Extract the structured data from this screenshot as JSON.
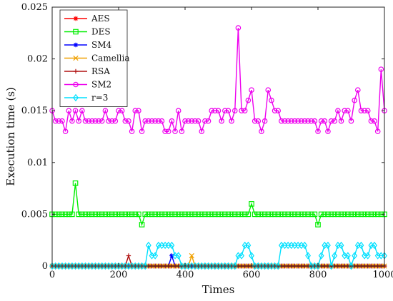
{
  "chart_data": {
    "type": "line",
    "xlabel": "Times",
    "ylabel": "Execution time (s)",
    "xlim": [
      0,
      1000
    ],
    "ylim": [
      0,
      0.025
    ],
    "xticks": [
      0,
      200,
      400,
      600,
      800,
      1000
    ],
    "yticks": [
      0,
      0.005,
      0.01,
      0.015,
      0.02,
      0.025
    ],
    "ytick_labels": [
      "0",
      "0.005",
      "0.01",
      "0.015",
      "0.02",
      "0.025"
    ],
    "grid": false,
    "legend_position": "top-left",
    "x": [
      0,
      10,
      20,
      30,
      40,
      50,
      60,
      70,
      80,
      90,
      100,
      110,
      120,
      130,
      140,
      150,
      160,
      170,
      180,
      190,
      200,
      210,
      220,
      230,
      240,
      250,
      260,
      270,
      280,
      290,
      300,
      310,
      320,
      330,
      340,
      350,
      360,
      370,
      380,
      390,
      400,
      410,
      420,
      430,
      440,
      450,
      460,
      470,
      480,
      490,
      500,
      510,
      520,
      530,
      540,
      550,
      560,
      570,
      580,
      590,
      600,
      610,
      620,
      630,
      640,
      650,
      660,
      670,
      680,
      690,
      700,
      710,
      720,
      730,
      740,
      750,
      760,
      770,
      780,
      790,
      800,
      810,
      820,
      830,
      840,
      850,
      860,
      870,
      880,
      890,
      900,
      910,
      920,
      930,
      940,
      950,
      960,
      970,
      980,
      990,
      1000
    ],
    "series": [
      {
        "name": "AES",
        "color": "#ff0000",
        "marker": "star",
        "values": [
          0,
          0,
          0,
          0,
          0,
          0,
          0,
          0,
          0,
          0,
          0,
          0,
          0,
          0,
          0,
          0,
          0,
          0,
          0,
          0,
          0,
          0,
          0,
          0,
          0,
          0,
          0,
          0,
          0,
          0,
          0,
          0,
          0,
          0,
          0,
          0,
          0,
          0,
          0,
          0,
          0,
          0,
          0,
          0,
          0,
          0,
          0,
          0,
          0,
          0,
          0,
          0,
          0,
          0,
          0,
          0,
          0,
          0,
          0,
          0,
          0,
          0,
          0,
          0,
          0,
          0,
          0,
          0,
          0,
          0,
          0,
          0,
          0,
          0,
          0,
          0,
          0,
          0,
          0,
          0,
          0,
          0,
          0,
          0,
          0,
          0,
          0,
          0,
          0,
          0,
          0,
          0,
          0,
          0,
          0,
          0,
          0,
          0,
          0,
          0,
          0
        ]
      },
      {
        "name": "DES",
        "color": "#00ee00",
        "marker": "square",
        "values": [
          0.005,
          0.005,
          0.005,
          0.005,
          0.005,
          0.005,
          0.005,
          0.008,
          0.005,
          0.005,
          0.005,
          0.005,
          0.005,
          0.005,
          0.005,
          0.005,
          0.005,
          0.005,
          0.005,
          0.005,
          0.005,
          0.005,
          0.005,
          0.005,
          0.005,
          0.005,
          0.005,
          0.004,
          0.005,
          0.005,
          0.005,
          0.005,
          0.005,
          0.005,
          0.005,
          0.005,
          0.005,
          0.005,
          0.005,
          0.005,
          0.005,
          0.005,
          0.005,
          0.005,
          0.005,
          0.005,
          0.005,
          0.005,
          0.005,
          0.005,
          0.005,
          0.005,
          0.005,
          0.005,
          0.005,
          0.005,
          0.005,
          0.005,
          0.005,
          0.005,
          0.006,
          0.005,
          0.005,
          0.005,
          0.005,
          0.005,
          0.005,
          0.005,
          0.005,
          0.005,
          0.005,
          0.005,
          0.005,
          0.005,
          0.005,
          0.005,
          0.005,
          0.005,
          0.005,
          0.005,
          0.004,
          0.005,
          0.005,
          0.005,
          0.005,
          0.005,
          0.005,
          0.005,
          0.005,
          0.005,
          0.005,
          0.005,
          0.005,
          0.005,
          0.005,
          0.005,
          0.005,
          0.005,
          0.005,
          0.005,
          0.005
        ]
      },
      {
        "name": "SM4",
        "color": "#0000ff",
        "marker": "asterisk",
        "values": [
          0,
          0,
          0,
          0,
          0,
          0,
          0,
          0,
          0,
          0,
          0,
          0,
          0,
          0,
          0,
          0,
          0,
          0,
          0,
          0,
          0,
          0,
          0,
          0,
          0,
          0,
          0,
          0,
          0,
          0,
          0,
          0,
          0,
          0,
          0,
          0,
          0.001,
          0,
          0,
          0,
          0,
          0,
          0,
          0,
          0,
          0,
          0,
          0,
          0,
          0,
          0,
          0,
          0,
          0,
          0,
          0,
          0,
          0,
          0,
          0,
          0,
          0,
          0,
          0,
          0,
          0,
          0,
          0,
          0,
          0,
          0,
          0,
          0,
          0,
          0,
          0,
          0,
          0,
          0,
          0,
          0,
          0,
          0,
          0,
          0,
          0,
          0,
          0,
          0,
          0,
          0,
          0,
          0,
          0,
          0,
          0,
          0,
          0,
          0,
          0,
          0
        ]
      },
      {
        "name": "Camellia",
        "color": "#f0a000",
        "marker": "x",
        "values": [
          0,
          0,
          0,
          0,
          0,
          0,
          0,
          0,
          0,
          0,
          0,
          0,
          0,
          0,
          0,
          0,
          0,
          0,
          0,
          0,
          0,
          0,
          0,
          0,
          0,
          0,
          0,
          0,
          0,
          0,
          0,
          0,
          0,
          0,
          0,
          0,
          0,
          0,
          0,
          0,
          0,
          0,
          0.001,
          0,
          0,
          0,
          0,
          0,
          0,
          0,
          0,
          0,
          0,
          0,
          0,
          0,
          0,
          0,
          0,
          0,
          0,
          0,
          0,
          0,
          0,
          0,
          0,
          0,
          0,
          0,
          0,
          0,
          0,
          0,
          0,
          0,
          0,
          0,
          0,
          0,
          0,
          0,
          0,
          0,
          0,
          0,
          0,
          0,
          0,
          0,
          0,
          0,
          0,
          0,
          0,
          0,
          0,
          0,
          0,
          0,
          0
        ]
      },
      {
        "name": "RSA",
        "color": "#b01010",
        "marker": "plus",
        "values": [
          0,
          0,
          0,
          0,
          0,
          0,
          0,
          0,
          0,
          0,
          0,
          0,
          0,
          0,
          0,
          0,
          0,
          0,
          0,
          0,
          0,
          0,
          0,
          0.001,
          0,
          0,
          0,
          0,
          0,
          0,
          0,
          0,
          0,
          0,
          0,
          0,
          0,
          0,
          0,
          0,
          0,
          0,
          0,
          0,
          0,
          0,
          0,
          0,
          0,
          0,
          0,
          0,
          0,
          0,
          0,
          0,
          0,
          0,
          0,
          0,
          0,
          0,
          0,
          0,
          0,
          0,
          0,
          0,
          0,
          0,
          0,
          0,
          0,
          0,
          0,
          0,
          0,
          0,
          0,
          0,
          0,
          0,
          0,
          0,
          0,
          0,
          0,
          0,
          0,
          0,
          0,
          0,
          0,
          0,
          0,
          0,
          0,
          0,
          0,
          0,
          0
        ]
      },
      {
        "name": "SM2",
        "color": "#ee00ee",
        "marker": "circle",
        "values": [
          0.015,
          0.014,
          0.014,
          0.014,
          0.013,
          0.015,
          0.014,
          0.015,
          0.014,
          0.015,
          0.014,
          0.014,
          0.014,
          0.014,
          0.014,
          0.014,
          0.015,
          0.014,
          0.014,
          0.014,
          0.015,
          0.015,
          0.014,
          0.014,
          0.013,
          0.015,
          0.015,
          0.013,
          0.014,
          0.014,
          0.014,
          0.014,
          0.014,
          0.014,
          0.013,
          0.013,
          0.014,
          0.013,
          0.015,
          0.013,
          0.014,
          0.014,
          0.014,
          0.014,
          0.014,
          0.013,
          0.014,
          0.014,
          0.015,
          0.015,
          0.015,
          0.014,
          0.015,
          0.015,
          0.014,
          0.015,
          0.023,
          0.015,
          0.015,
          0.016,
          0.017,
          0.014,
          0.014,
          0.013,
          0.014,
          0.017,
          0.016,
          0.015,
          0.015,
          0.014,
          0.014,
          0.014,
          0.014,
          0.014,
          0.014,
          0.014,
          0.014,
          0.014,
          0.014,
          0.014,
          0.013,
          0.014,
          0.014,
          0.013,
          0.014,
          0.014,
          0.015,
          0.014,
          0.015,
          0.015,
          0.014,
          0.016,
          0.017,
          0.015,
          0.015,
          0.015,
          0.014,
          0.014,
          0.013,
          0.019,
          0.015
        ]
      },
      {
        "name": "r=3",
        "color": "#00e0ff",
        "marker": "diamond",
        "values": [
          0,
          0,
          0,
          0,
          0,
          0,
          0,
          0,
          0,
          0,
          0,
          0,
          0,
          0,
          0,
          0,
          0,
          0,
          0,
          0,
          0,
          0,
          0,
          0,
          0,
          0,
          0,
          0,
          0,
          0.002,
          0.001,
          0.001,
          0.002,
          0.002,
          0.002,
          0.002,
          0.002,
          0.001,
          0.001,
          0,
          0,
          0,
          0,
          0,
          0,
          0,
          0,
          0,
          0,
          0,
          0,
          0,
          0,
          0,
          0,
          0,
          0.001,
          0.001,
          0.002,
          0.002,
          0.001,
          0,
          0,
          0,
          0,
          0,
          0,
          0,
          0,
          0.002,
          0.002,
          0.002,
          0.002,
          0.002,
          0.002,
          0.002,
          0.002,
          0.001,
          0,
          0,
          0,
          0.001,
          0.002,
          0.002,
          0,
          0.001,
          0.002,
          0.002,
          0.001,
          0.001,
          0,
          0.001,
          0.002,
          0.002,
          0.001,
          0.001,
          0.002,
          0.002,
          0.001,
          0.001,
          0.001
        ]
      }
    ]
  }
}
